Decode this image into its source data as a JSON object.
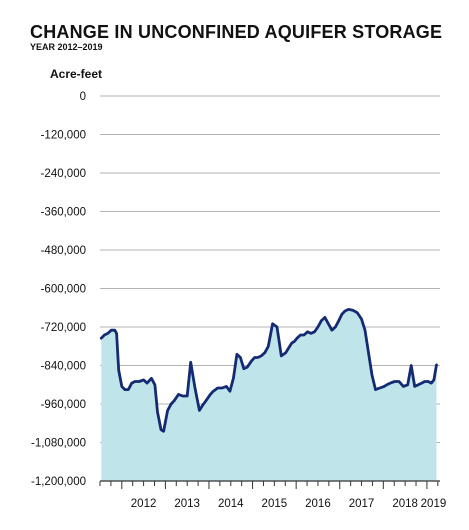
{
  "chart_data": {
    "type": "area",
    "title": "CHANGE IN UNCONFINED AQUIFER STORAGE",
    "subtitle": "YEAR 2012–2019",
    "ylabel": "Acre-feet",
    "xlabel": "",
    "ylim": [
      -1200000,
      0
    ],
    "xlim": [
      2011.5,
      2019.3
    ],
    "y_ticks": [
      0,
      -120000,
      -240000,
      -360000,
      -480000,
      -600000,
      -720000,
      -840000,
      -960000,
      -1080000,
      -1200000
    ],
    "y_tick_labels": [
      "0",
      "-120,000",
      "-240,000",
      "-360,000",
      "-480,000",
      "-600,000",
      "-720,000",
      "-840,000",
      "-960,000",
      "-1,080,000",
      "-1,200,000"
    ],
    "x_tick_labels": [
      {
        "x": 2012,
        "label": "2012"
      },
      {
        "x": 2013,
        "label": "2013"
      },
      {
        "x": 2014,
        "label": "2014"
      },
      {
        "x": 2015,
        "label": "2015"
      },
      {
        "x": 2016,
        "label": "2016"
      },
      {
        "x": 2017,
        "label": "2017"
      },
      {
        "x": 2018,
        "label": "2018"
      },
      {
        "x": 2019,
        "label": "2019"
      }
    ],
    "grid": true,
    "colors": {
      "line": "#142a73",
      "fill": "#bfe5eb",
      "grid": "#9a9a9a",
      "axis": "#333333"
    },
    "series": [
      {
        "x": [
          2011.53,
          2011.6,
          2011.68,
          2011.76,
          2011.84,
          2011.88,
          2011.93,
          2012.0,
          2012.07,
          2012.15,
          2012.23,
          2012.3,
          2012.4,
          2012.5,
          2012.58,
          2012.68,
          2012.76,
          2012.82,
          2012.9,
          2012.96,
          2013.05,
          2013.13,
          2013.2,
          2013.3,
          2013.4,
          2013.5,
          2013.58,
          2013.68,
          2013.78,
          2013.85,
          2013.93,
          2014.03,
          2014.1,
          2014.2,
          2014.3,
          2014.4,
          2014.48,
          2014.56,
          2014.64,
          2014.72,
          2014.8,
          2014.88,
          2014.98,
          2015.05,
          2015.12,
          2015.2,
          2015.28,
          2015.36,
          2015.46,
          2015.56,
          2015.66,
          2015.76,
          2015.83,
          2015.9,
          2015.96,
          2016.02,
          2016.1,
          2016.18,
          2016.26,
          2016.34,
          2016.42,
          2016.5,
          2016.58,
          2016.66,
          2016.74,
          2016.82,
          2016.9,
          2016.96,
          2017.05,
          2017.12,
          2017.2,
          2017.3,
          2017.4,
          2017.5,
          2017.58,
          2017.66,
          2017.74,
          2017.82,
          2017.92,
          2018.02,
          2018.08,
          2018.16,
          2018.26,
          2018.36,
          2018.46,
          2018.56,
          2018.64,
          2018.72,
          2018.8,
          2018.88,
          2018.95,
          2019.03,
          2019.1,
          2019.16,
          2019.22
        ],
        "values": [
          -755000,
          -745000,
          -740000,
          -730000,
          -730000,
          -740000,
          -855000,
          -905000,
          -915000,
          -915000,
          -895000,
          -890000,
          -890000,
          -885000,
          -895000,
          -880000,
          -900000,
          -985000,
          -1040000,
          -1045000,
          -980000,
          -960000,
          -950000,
          -930000,
          -935000,
          -935000,
          -830000,
          -910000,
          -980000,
          -965000,
          -950000,
          -930000,
          -920000,
          -910000,
          -910000,
          -905000,
          -920000,
          -880000,
          -805000,
          -815000,
          -850000,
          -845000,
          -825000,
          -815000,
          -815000,
          -810000,
          -800000,
          -780000,
          -710000,
          -720000,
          -810000,
          -800000,
          -785000,
          -770000,
          -765000,
          -755000,
          -745000,
          -745000,
          -735000,
          -740000,
          -735000,
          -720000,
          -700000,
          -690000,
          -710000,
          -730000,
          -720000,
          -705000,
          -680000,
          -670000,
          -665000,
          -668000,
          -675000,
          -695000,
          -730000,
          -800000,
          -870000,
          -915000,
          -910000,
          -905000,
          -900000,
          -895000,
          -890000,
          -890000,
          -905000,
          -900000,
          -840000,
          -905000,
          -900000,
          -895000,
          -890000,
          -890000,
          -895000,
          -885000,
          -838000
        ]
      }
    ]
  }
}
